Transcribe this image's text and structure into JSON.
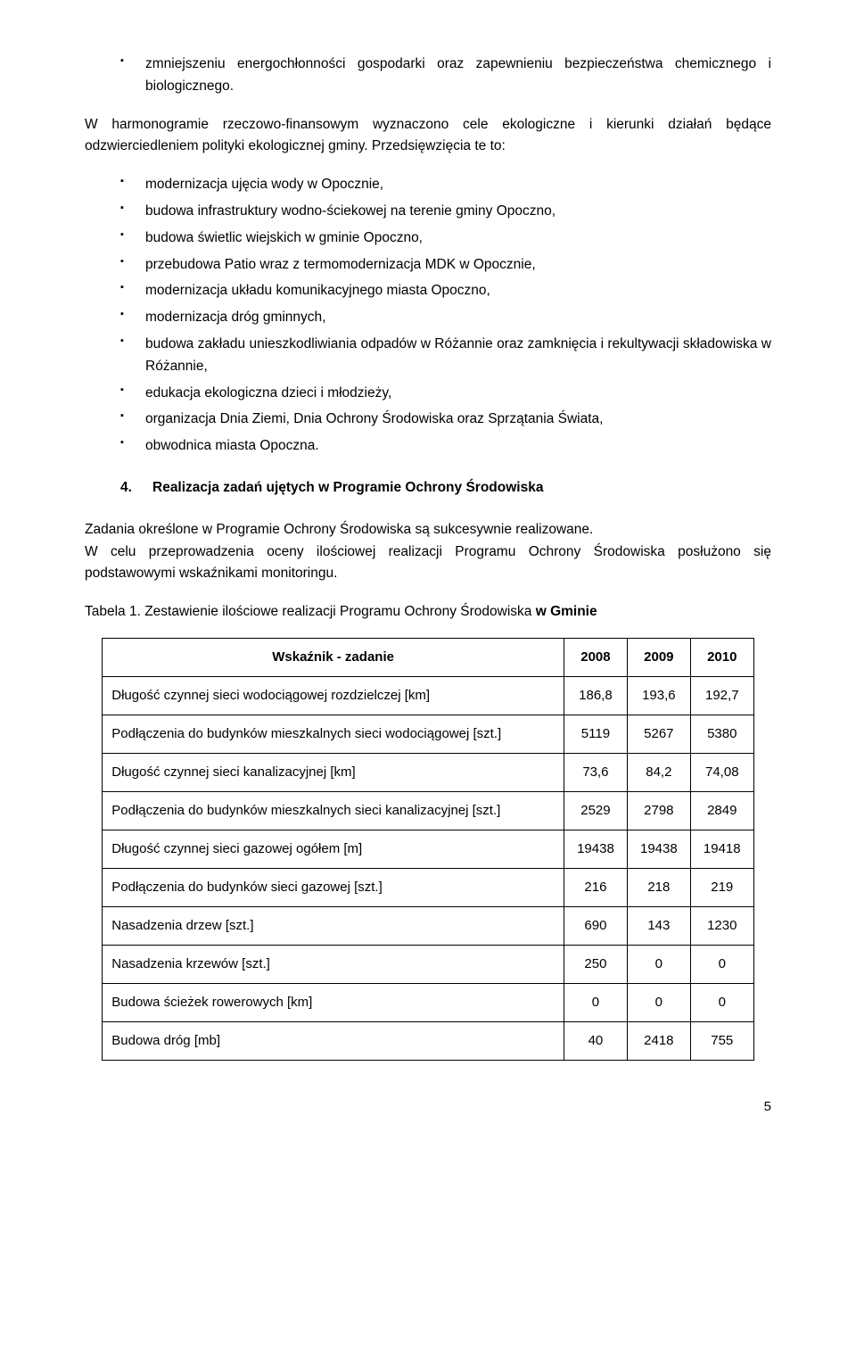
{
  "firstList": [
    "zmniejszeniu energochłonności gospodarki oraz zapewnieniu bezpieczeństwa chemicznego i biologicznego."
  ],
  "firstListClasses": [
    "spaced-words"
  ],
  "para1": "W harmonogramie rzeczowo-finansowym wyznaczono cele ekologiczne i kierunki działań będące odzwierciedleniem polityki ekologicznej gminy. Przedsięwzięcia te to:",
  "secondList": [
    "modernizacja ujęcia wody w Opocznie,",
    "budowa infrastruktury wodno-ściekowej na terenie gminy Opoczno,",
    "budowa świetlic wiejskich w gminie Opoczno,",
    "przebudowa Patio wraz z termomodernizacja MDK w Opocznie,",
    "modernizacja układu komunikacyjnego miasta Opoczno,",
    "modernizacja dróg gminnych,",
    "budowa zakładu unieszkodliwiania odpadów w Różannie oraz zamknięcia i rekultywacji składowiska w Różannie,",
    "edukacja ekologiczna dzieci i młodzieży,",
    "organizacja Dnia Ziemi, Dnia Ochrony Środowiska oraz Sprzątania Świata,",
    "obwodnica miasta Opoczna."
  ],
  "sectionNumber": "4.",
  "sectionTitle": "Realizacja zadań ujętych w Programie Ochrony Środowiska",
  "para2": "Zadania określone w Programie Ochrony Środowiska są sukcesywnie realizowane.",
  "para3": "W celu przeprowadzenia oceny ilościowej realizacji Programu Ochrony Środowiska posłużono się podstawowymi wskaźnikami monitoringu.",
  "tableCaptionPlain": "Tabela 1.  Zestawienie ilościowe realizacji Programu Ochrony Środowiska ",
  "tableCaptionBold": "w Gminie",
  "table": {
    "headerLabel": "Wskaźnik - zadanie",
    "years": [
      "2008",
      "2009",
      "2010"
    ],
    "rows": [
      {
        "label": "Długość czynnej sieci wodociągowej rozdzielczej [km]",
        "v": [
          "186,8",
          "193,6",
          "192,7"
        ]
      },
      {
        "label": "Podłączenia do budynków mieszkalnych sieci wodociągowej [szt.]",
        "v": [
          "5119",
          "5267",
          "5380"
        ]
      },
      {
        "label": "Długość czynnej sieci kanalizacyjnej [km]",
        "v": [
          "73,6",
          "84,2",
          "74,08"
        ]
      },
      {
        "label": "Podłączenia do budynków mieszkalnych sieci kanalizacyjnej [szt.]",
        "v": [
          "2529",
          "2798",
          "2849"
        ]
      },
      {
        "label": "Długość czynnej sieci gazowej ogółem [m]",
        "v": [
          "19438",
          "19438",
          "19418"
        ]
      },
      {
        "label": "Podłączenia do budynków sieci gazowej [szt.]",
        "v": [
          "216",
          "218",
          "219"
        ]
      },
      {
        "label": "Nasadzenia drzew [szt.]",
        "v": [
          "690",
          "143",
          "1230"
        ]
      },
      {
        "label": "Nasadzenia krzewów [szt.]",
        "v": [
          "250",
          "0",
          "0"
        ]
      },
      {
        "label": "Budowa ścieżek rowerowych [km]",
        "v": [
          "0",
          "0",
          "0"
        ]
      },
      {
        "label": "Budowa dróg [mb]",
        "v": [
          "40",
          "2418",
          "755"
        ]
      }
    ]
  },
  "pageNumber": "5"
}
